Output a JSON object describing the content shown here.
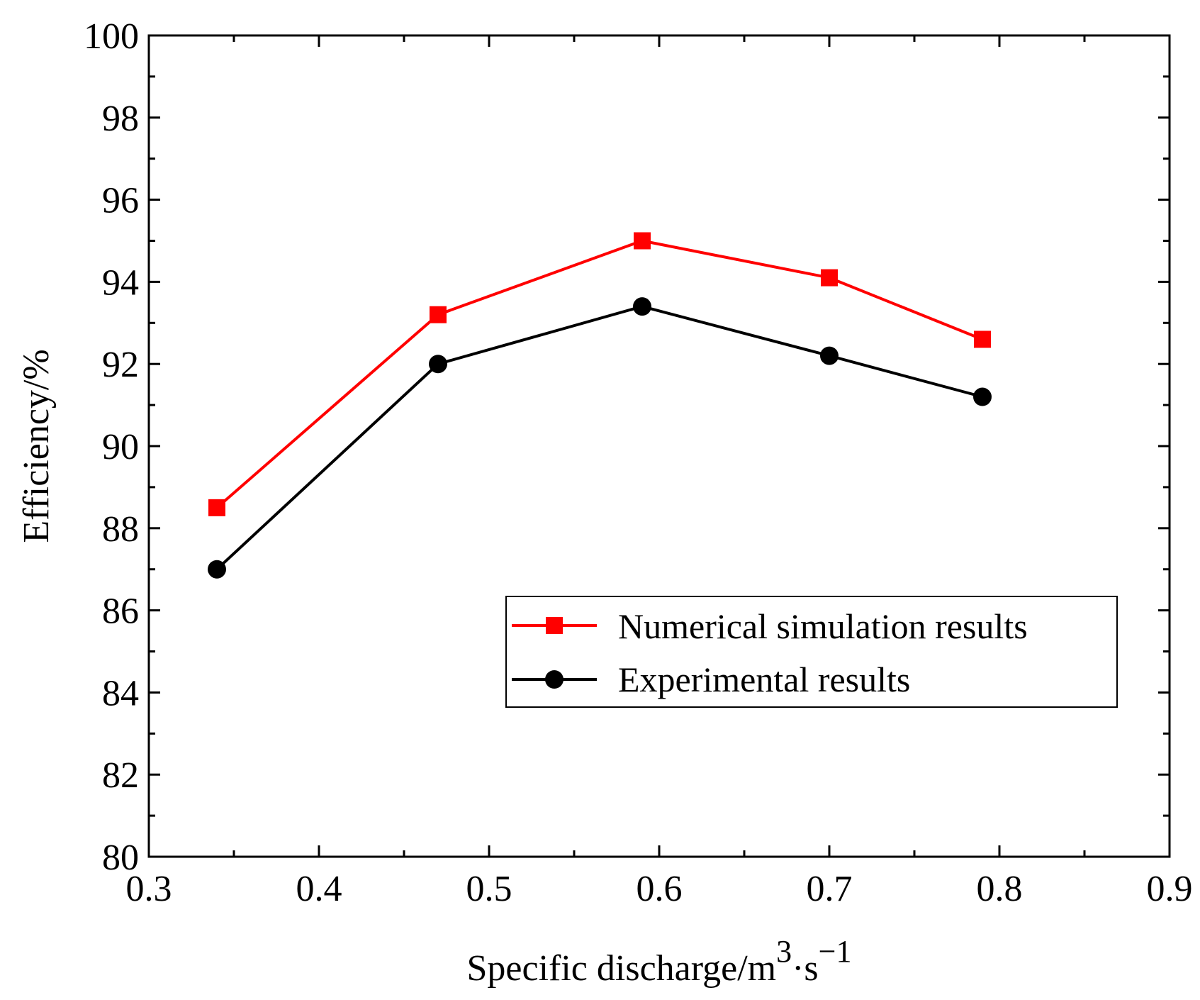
{
  "chart_data": {
    "type": "line",
    "title": "",
    "xlabel": "Specific discharge/m",
    "xlabel_sup1": "3",
    "xlabel_mid": "·s",
    "xlabel_sup2": "−1",
    "ylabel": "Efficiency/%",
    "xlim": [
      0.3,
      0.9
    ],
    "ylim": [
      80,
      100
    ],
    "xticks": [
      0.3,
      0.4,
      0.5,
      0.6,
      0.7,
      0.8,
      0.9
    ],
    "xtick_labels": [
      "0.3",
      "0.4",
      "0.5",
      "0.6",
      "0.7",
      "0.8",
      "0.9"
    ],
    "yticks": [
      80,
      82,
      84,
      86,
      88,
      90,
      92,
      94,
      96,
      98,
      100
    ],
    "ytick_labels": [
      "80",
      "82",
      "84",
      "86",
      "88",
      "90",
      "92",
      "94",
      "96",
      "98",
      "100"
    ],
    "grid": false,
    "legend_position": "lower-right",
    "x": [
      0.34,
      0.47,
      0.59,
      0.7,
      0.79
    ],
    "series": [
      {
        "name": "Numerical simulation results",
        "color": "#ff0000",
        "marker": "square",
        "values": [
          88.5,
          93.2,
          95.0,
          94.1,
          92.6
        ]
      },
      {
        "name": "Experimental results",
        "color": "#000000",
        "marker": "circle",
        "values": [
          87.0,
          92.0,
          93.4,
          92.2,
          91.2
        ]
      }
    ]
  }
}
